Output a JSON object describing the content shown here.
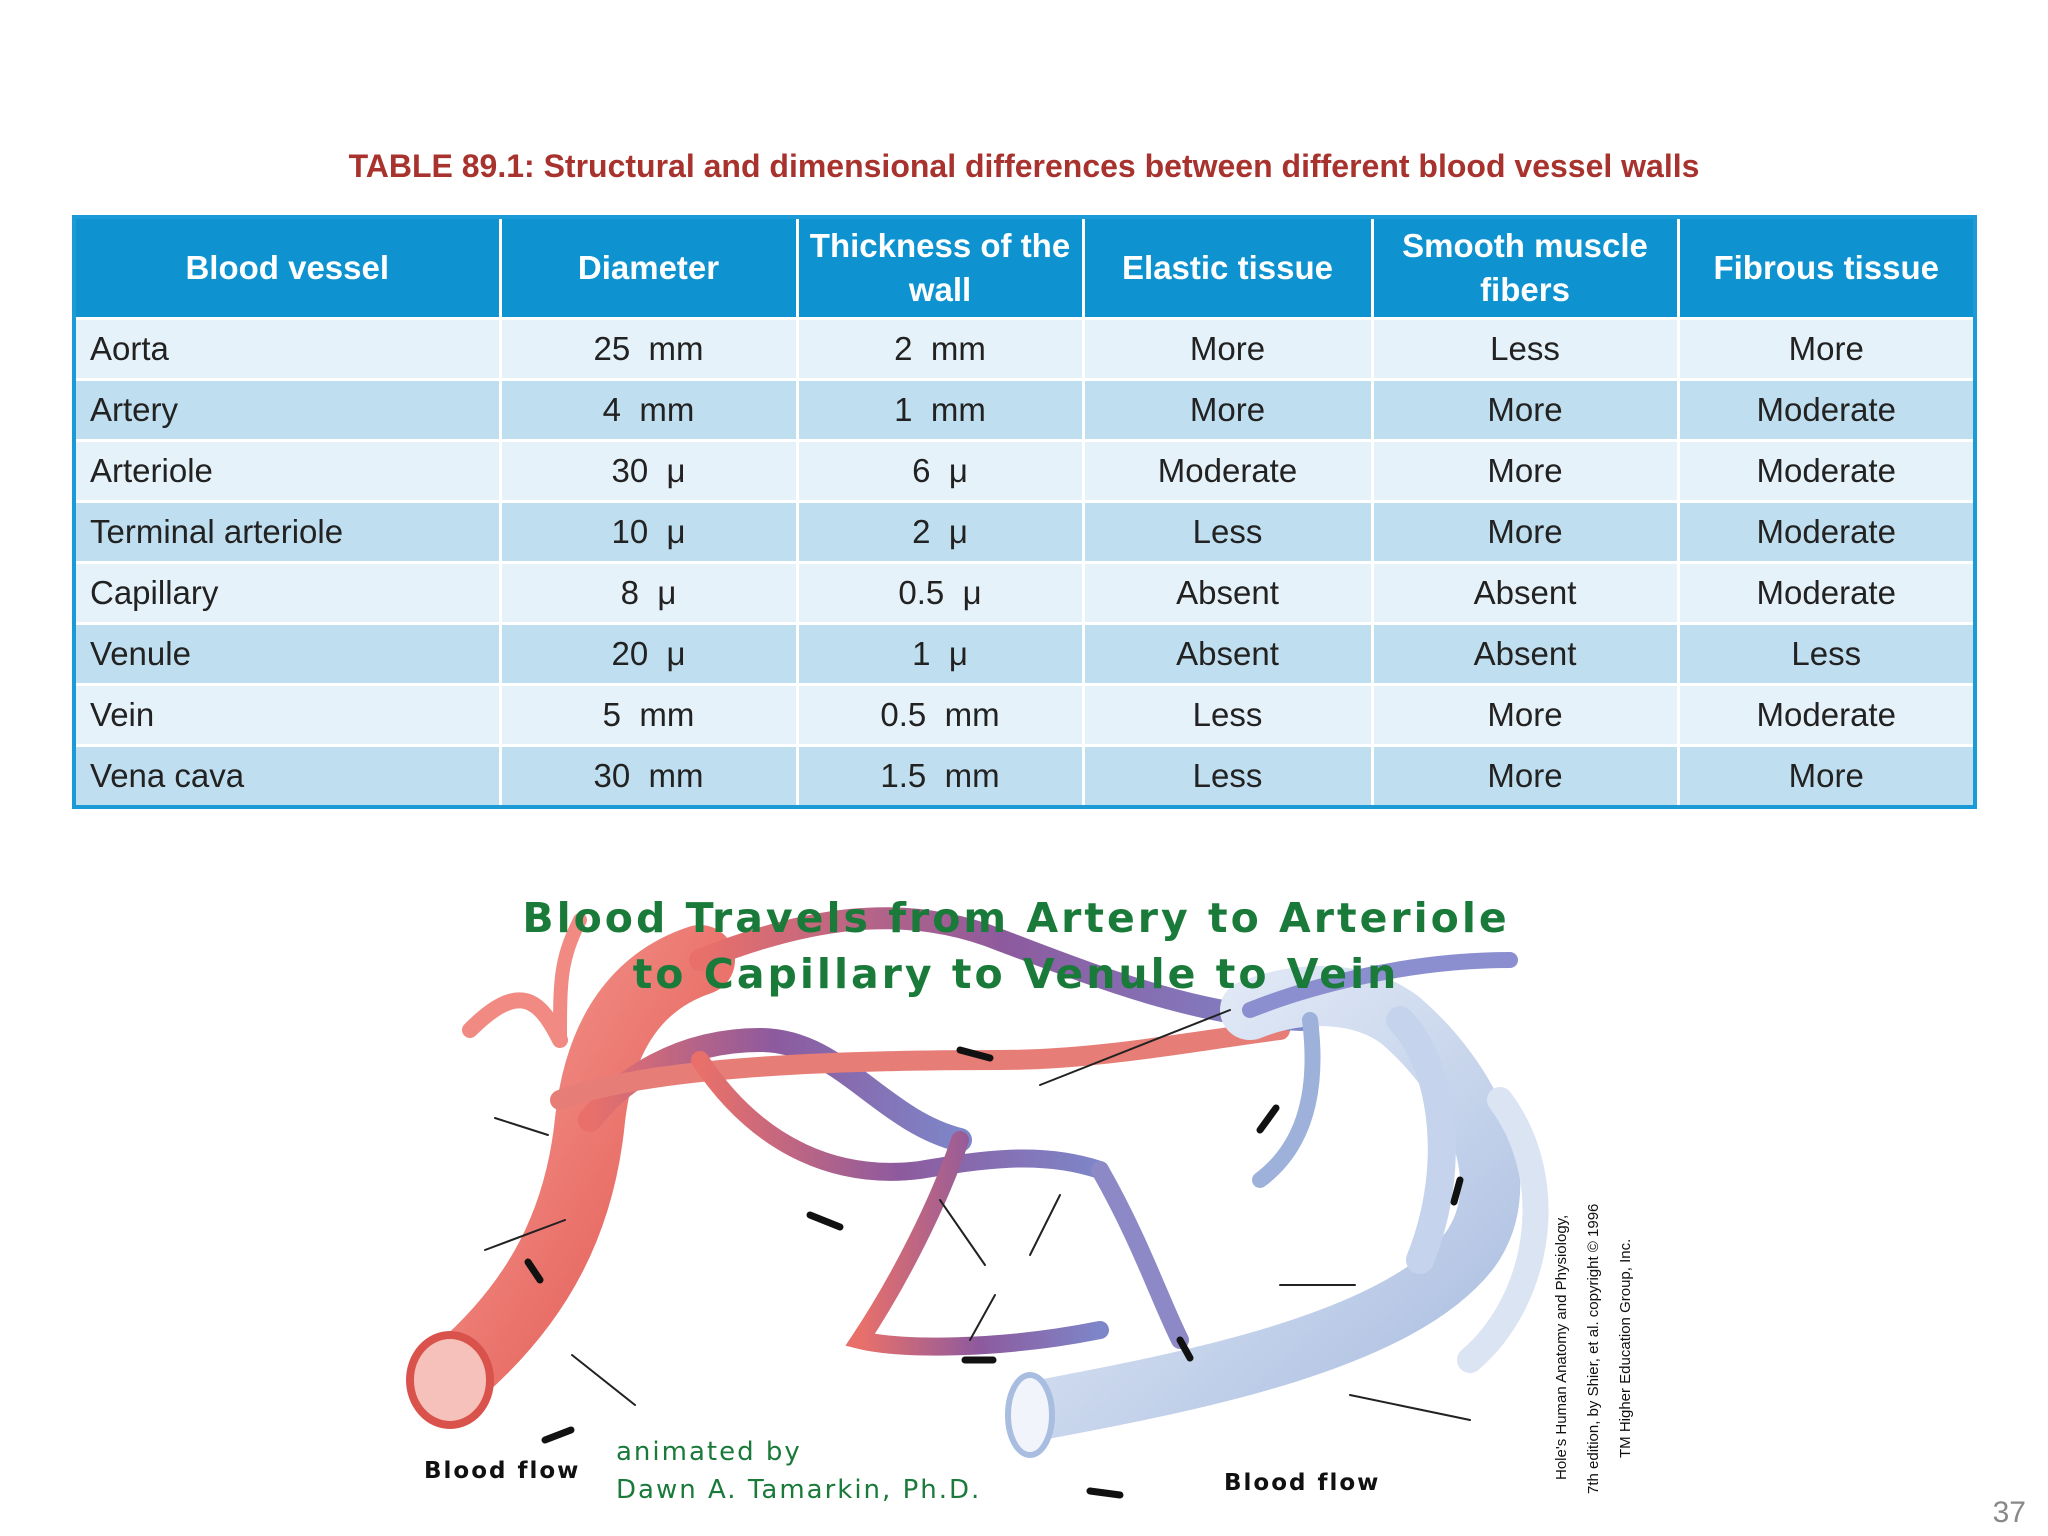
{
  "table_title": "TABLE 89.1: Structural and dimensional differences between different blood vessel walls",
  "table": {
    "headers": [
      "Blood vessel",
      "Diameter",
      "Thickness of the wall",
      "Elastic tissue",
      "Smooth muscle fibers",
      "Fibrous tissue"
    ],
    "rows": [
      [
        "Aorta",
        "25  mm",
        "2  mm",
        "More",
        "Less",
        "More"
      ],
      [
        "Artery",
        "4  mm",
        "1  mm",
        "More",
        "More",
        "Moderate"
      ],
      [
        "Arteriole",
        "30  μ",
        "6  μ",
        "Moderate",
        "More",
        "Moderate"
      ],
      [
        "Terminal arteriole",
        "10  μ",
        "2  μ",
        "Less",
        "More",
        "Moderate"
      ],
      [
        "Capillary",
        "8  μ",
        "0.5  μ",
        "Absent",
        "Absent",
        "Moderate"
      ],
      [
        "Venule",
        "20  μ",
        "1  μ",
        "Absent",
        "Absent",
        "Less"
      ],
      [
        "Vein",
        "5  mm",
        "0.5  mm",
        "Less",
        "More",
        "Moderate"
      ],
      [
        "Vena cava",
        "30  mm",
        "1.5  mm",
        "Less",
        "More",
        "More"
      ]
    ]
  },
  "diagram": {
    "title_lines": [
      "Blood Travels from Artery to Arteriole",
      "to Capillary to Venule to Vein"
    ],
    "left_caption": "Blood flow",
    "right_caption": "Blood flow",
    "credit_lines": [
      "animated by",
      "Dawn A. Tamarkin, Ph.D."
    ],
    "source_lines": [
      "Hole's Human Anatomy and Physiology,",
      "7th edition, by Shier, et al. copyright © 1996",
      "TM Higher Education Group, Inc."
    ]
  },
  "page_number": "37"
}
